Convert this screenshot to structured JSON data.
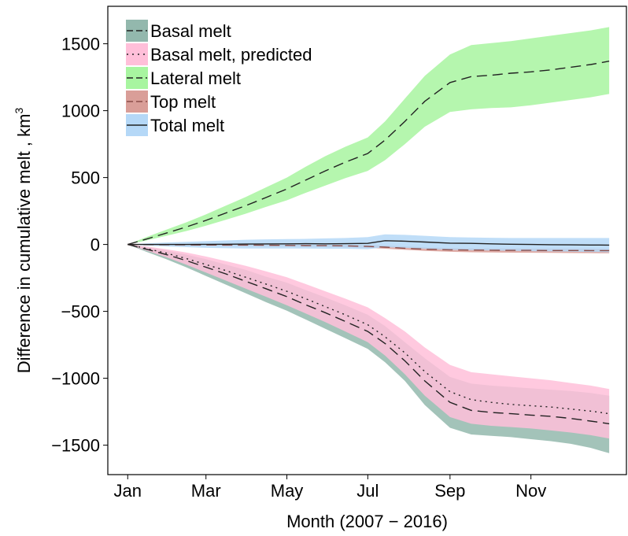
{
  "chart_data": {
    "type": "area",
    "xlabel": "Month (2007 − 2016)",
    "ylabel": "Difference in cumulative melt , km",
    "ylabel_superscript": "3",
    "x_ticks": [
      "Jan",
      "Mar",
      "May",
      "Jul",
      "Sep",
      "Nov"
    ],
    "x_tick_days": [
      1,
      60,
      121,
      182,
      244,
      305
    ],
    "xlim": [
      -14,
      377
    ],
    "y_ticks": [
      -1500,
      -1000,
      -500,
      0,
      500,
      1000,
      1500
    ],
    "ylim": [
      -1720,
      1780
    ],
    "grid": false,
    "legend_position": "top-left",
    "x": [
      1,
      15,
      30,
      45,
      60,
      75,
      90,
      105,
      121,
      135,
      150,
      165,
      182,
      195,
      210,
      225,
      244,
      260,
      275,
      290,
      305,
      320,
      335,
      350,
      364
    ],
    "series": [
      {
        "name": "Basal melt",
        "line_style": "dashed",
        "fill": "#93b8ad",
        "mean": [
          0,
          -35,
          -75,
          -120,
          -170,
          -220,
          -275,
          -330,
          -390,
          -450,
          -510,
          -575,
          -650,
          -740,
          -870,
          -1020,
          -1180,
          -1240,
          -1255,
          -1265,
          -1275,
          -1285,
          -1300,
          -1320,
          -1340
        ],
        "lower": [
          0,
          -55,
          -110,
          -170,
          -235,
          -300,
          -365,
          -430,
          -495,
          -560,
          -630,
          -700,
          -780,
          -880,
          -1020,
          -1200,
          -1370,
          -1420,
          -1430,
          -1440,
          -1455,
          -1470,
          -1490,
          -1520,
          -1560
        ],
        "upper": [
          0,
          -20,
          -45,
          -75,
          -110,
          -150,
          -190,
          -240,
          -285,
          -340,
          -395,
          -455,
          -525,
          -610,
          -730,
          -850,
          -990,
          -1040,
          -1055,
          -1065,
          -1075,
          -1085,
          -1095,
          -1110,
          -1130
        ]
      },
      {
        "name": "Basal melt, predicted",
        "line_style": "dotted",
        "fill": "#ffbfd9",
        "mean": [
          0,
          -30,
          -65,
          -105,
          -150,
          -195,
          -245,
          -295,
          -350,
          -405,
          -465,
          -525,
          -600,
          -690,
          -810,
          -950,
          -1100,
          -1160,
          -1180,
          -1195,
          -1205,
          -1215,
          -1230,
          -1245,
          -1265
        ],
        "lower": [
          0,
          -45,
          -95,
          -150,
          -210,
          -270,
          -330,
          -390,
          -455,
          -515,
          -580,
          -650,
          -730,
          -830,
          -970,
          -1130,
          -1290,
          -1340,
          -1355,
          -1365,
          -1375,
          -1390,
          -1405,
          -1425,
          -1450
        ],
        "upper": [
          0,
          -15,
          -35,
          -60,
          -90,
          -125,
          -160,
          -200,
          -245,
          -295,
          -350,
          -405,
          -470,
          -550,
          -650,
          -770,
          -900,
          -955,
          -970,
          -985,
          -1000,
          -1015,
          -1035,
          -1055,
          -1080
        ]
      },
      {
        "name": "Lateral melt",
        "line_style": "dashed",
        "fill": "#a8f5a0",
        "mean": [
          0,
          40,
          85,
          130,
          180,
          235,
          290,
          350,
          415,
          480,
          550,
          615,
          680,
          780,
          920,
          1070,
          1210,
          1255,
          1265,
          1280,
          1290,
          1305,
          1325,
          1345,
          1370
        ],
        "lower": [
          0,
          30,
          65,
          100,
          140,
          185,
          230,
          280,
          330,
          385,
          440,
          495,
          550,
          630,
          750,
          880,
          990,
          1010,
          1020,
          1025,
          1040,
          1060,
          1080,
          1100,
          1125
        ],
        "upper": [
          0,
          55,
          110,
          165,
          225,
          290,
          355,
          425,
          500,
          580,
          660,
          730,
          800,
          920,
          1090,
          1260,
          1420,
          1490,
          1505,
          1520,
          1540,
          1560,
          1580,
          1600,
          1625
        ]
      },
      {
        "name": "Top melt",
        "line_style": "dashed",
        "fill": "#d99e98",
        "mean": [
          0,
          -1,
          -2,
          -3,
          -4,
          -5,
          -5,
          -6,
          -7,
          -8,
          -9,
          -10,
          -15,
          -20,
          -28,
          -35,
          -40,
          -42,
          -43,
          -44,
          -44,
          -45,
          -45,
          -46,
          -46
        ],
        "lower": [
          0,
          -3,
          -5,
          -7,
          -8,
          -9,
          -10,
          -11,
          -13,
          -15,
          -17,
          -20,
          -25,
          -32,
          -40,
          -48,
          -55,
          -58,
          -60,
          -61,
          -62,
          -63,
          -64,
          -65,
          -66
        ],
        "upper": [
          0,
          1,
          1,
          1,
          0,
          -1,
          -1,
          -2,
          -2,
          -2,
          -3,
          -3,
          -5,
          -8,
          -15,
          -22,
          -26,
          -28,
          -29,
          -29,
          -30,
          -30,
          -31,
          -31,
          -32
        ]
      },
      {
        "name": "Total melt",
        "line_style": "solid",
        "fill": "#b5d8f7",
        "mean": [
          0,
          0,
          0,
          0,
          1,
          2,
          3,
          4,
          5,
          6,
          5,
          6,
          8,
          28,
          25,
          18,
          10,
          8,
          5,
          2,
          0,
          -2,
          -3,
          -4,
          -5
        ],
        "lower": [
          0,
          -8,
          -15,
          -20,
          -25,
          -28,
          -30,
          -30,
          -30,
          -30,
          -32,
          -32,
          -35,
          -20,
          -25,
          -32,
          -40,
          -42,
          -45,
          -47,
          -50,
          -52,
          -54,
          -56,
          -58
        ],
        "upper": [
          0,
          8,
          15,
          20,
          25,
          30,
          35,
          38,
          40,
          42,
          45,
          48,
          55,
          75,
          72,
          65,
          55,
          52,
          50,
          48,
          48,
          48,
          48,
          48,
          48
        ]
      }
    ]
  }
}
